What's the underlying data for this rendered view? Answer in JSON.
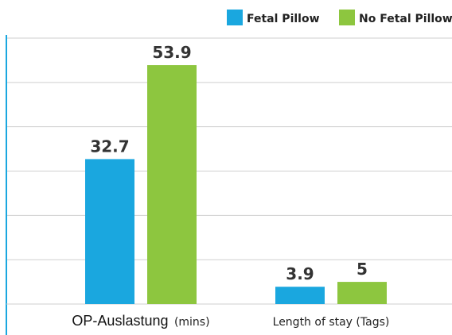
{
  "chart_data": {
    "type": "bar",
    "categories": [
      "OP-Auslastung",
      "Length of stay (Tags)"
    ],
    "category_labels": [
      {
        "main": "OP-Auslastung",
        "unit": "(mins)"
      },
      {
        "main": "Length of stay (Tags)",
        "unit": ""
      }
    ],
    "series": [
      {
        "name": "Fetal Pillow",
        "values": [
          32.7,
          3.9
        ],
        "labels": [
          "32.7",
          "3.9"
        ],
        "color": "#1AA7DF"
      },
      {
        "name": "No Fetal Pillow",
        "values": [
          53.9,
          5
        ],
        "labels": [
          "53.9",
          "5"
        ],
        "color": "#8DC63F"
      }
    ],
    "title": "",
    "xlabel": "",
    "ylabel": "",
    "ylim": [
      0,
      60
    ],
    "grid": true,
    "legend": "top-right",
    "axis_color": "#1AA7DF",
    "grid_color": "#cfcfcf"
  }
}
